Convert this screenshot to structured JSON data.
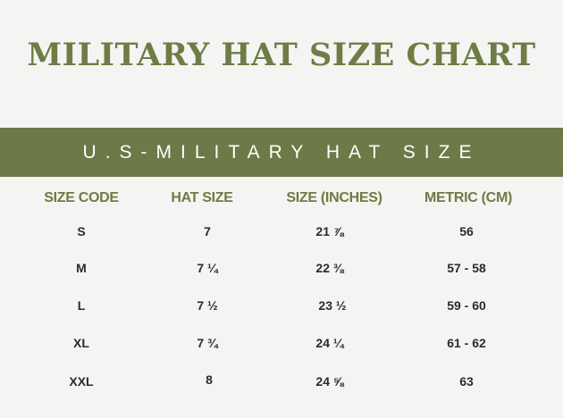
{
  "title": "MILITARY HAT SIZE CHART",
  "banner": "U.S-MILITARY HAT SIZE",
  "table": {
    "headers": [
      "SIZE CODE",
      "HAT SIZE",
      "SIZE (INCHES)",
      "METRIC (CM)"
    ],
    "rows": [
      [
        "S",
        "7",
        "21 ⅞",
        "56"
      ],
      [
        "M",
        "7 ¼",
        "22 ⅜",
        "57 - 58"
      ],
      [
        "L",
        "7 ½",
        "23 ½",
        "59 - 60"
      ],
      [
        "XL",
        "7 ¾",
        "24 ¼",
        "61 - 62"
      ],
      [
        "XXL",
        "8",
        "24 ⅝",
        "63"
      ]
    ]
  },
  "colors": {
    "accent": "#6b7a46",
    "background": "#f4f4f2",
    "text": "#2b2b2b"
  }
}
